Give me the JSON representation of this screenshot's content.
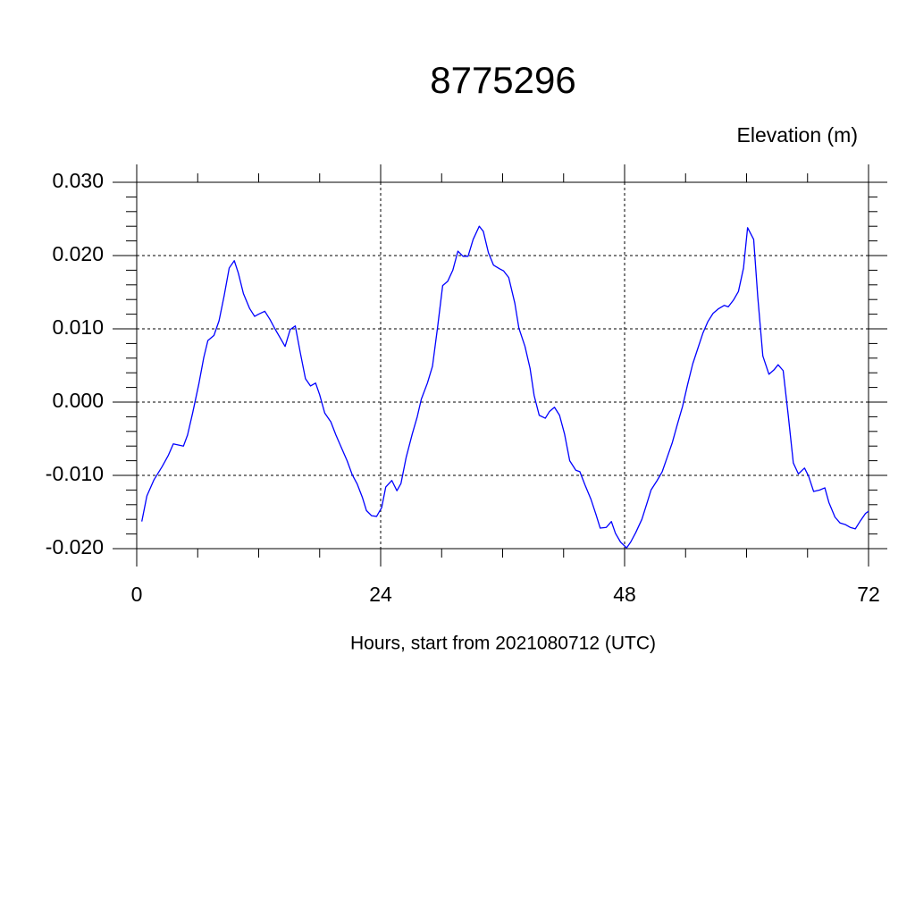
{
  "chart_data": {
    "type": "line",
    "title": "8775296",
    "subtitle": "Elevation (m)",
    "x_label": "Hours, start from 2021080712 (UTC)",
    "xlim": [
      0,
      72
    ],
    "xticks": [
      0,
      24,
      48,
      72
    ],
    "x_minor_ticks": [
      6,
      12,
      18,
      30,
      36,
      42,
      54,
      60,
      66
    ],
    "ylim": [
      -0.02,
      0.03
    ],
    "yticks": [
      {
        "value": 0.03,
        "label": "0.030"
      },
      {
        "value": 0.02,
        "label": "0.020"
      },
      {
        "value": 0.01,
        "label": "0.010"
      },
      {
        "value": 0,
        "label": "0.000"
      },
      {
        "value": -0.01,
        "label": "-0.010"
      },
      {
        "value": -0.02,
        "label": "-0.020"
      }
    ],
    "y_minor_ticks": [
      -0.018,
      -0.016,
      -0.014,
      -0.012,
      -0.008,
      -0.006,
      -0.004,
      -0.002,
      0.002,
      0.004,
      0.006,
      0.008,
      0.012,
      0.014,
      0.016,
      0.018,
      0.022,
      0.024,
      0.026,
      0.028
    ],
    "grid": true,
    "series": [
      {
        "color": "#0000ff",
        "x": [
          0.5,
          1.0,
          1.7,
          2.5,
          3.1,
          3.6,
          4.6,
          5.0,
          5.5,
          6.1,
          6.6,
          7.0,
          7.6,
          8.1,
          8.6,
          9.1,
          9.6,
          10.0,
          10.5,
          11.1,
          11.6,
          12.0,
          12.6,
          13.1,
          13.6,
          14.1,
          14.6,
          15.1,
          15.6,
          16.1,
          16.6,
          17.1,
          17.6,
          18.0,
          18.5,
          19.1,
          19.6,
          20.1,
          20.7,
          21.2,
          21.7,
          22.2,
          22.6,
          23.1,
          23.6,
          24.1,
          24.5,
          25.1,
          25.6,
          26.0,
          26.5,
          27.1,
          27.6,
          28.0,
          28.6,
          29.1,
          29.6,
          30.1,
          30.6,
          31.1,
          31.6,
          32.1,
          32.6,
          33.1,
          33.7,
          34.1,
          34.6,
          35.1,
          35.7,
          36.1,
          36.6,
          37.2,
          37.6,
          38.2,
          38.7,
          39.1,
          39.6,
          40.2,
          40.6,
          41.1,
          41.6,
          42.1,
          42.6,
          43.2,
          43.6,
          44.1,
          44.7,
          45.2,
          45.6,
          46.2,
          46.7,
          47.1,
          47.6,
          48.2,
          48.6,
          49.1,
          49.7,
          50.2,
          50.6,
          51.2,
          51.7,
          52.1,
          52.7,
          53.2,
          53.7,
          54.2,
          54.7,
          55.2,
          55.7,
          56.2,
          56.7,
          57.2,
          57.8,
          58.2,
          58.7,
          59.2,
          59.7,
          60.1,
          60.7,
          61.1,
          61.6,
          62.2,
          62.7,
          63.1,
          63.6,
          64.1,
          64.6,
          65.1,
          65.7,
          66.1,
          66.6,
          67.2,
          67.7,
          68.1,
          68.7,
          69.2,
          69.7,
          70.2,
          70.7,
          71.2,
          71.7,
          72
        ],
        "values": [
          -0.0163,
          -0.0128,
          -0.0106,
          -0.0088,
          -0.0073,
          -0.0057,
          -0.006,
          -0.0045,
          -0.0015,
          0.0024,
          0.0061,
          0.0084,
          0.0091,
          0.0111,
          0.0145,
          0.0183,
          0.0193,
          0.0176,
          0.0148,
          0.0128,
          0.0117,
          0.012,
          0.0124,
          0.0113,
          0.01,
          0.0088,
          0.0076,
          0.0099,
          0.0104,
          0.0067,
          0.0032,
          0.0022,
          0.0026,
          0.001,
          -0.0015,
          -0.0027,
          -0.0045,
          -0.0061,
          -0.008,
          -0.0099,
          -0.0112,
          -0.013,
          -0.0148,
          -0.0155,
          -0.0156,
          -0.0144,
          -0.0116,
          -0.0107,
          -0.0121,
          -0.0111,
          -0.0076,
          -0.0044,
          -0.002,
          0.0004,
          0.0026,
          0.0049,
          0.0102,
          0.0159,
          0.0165,
          0.018,
          0.0206,
          0.0199,
          0.0199,
          0.0222,
          0.024,
          0.0233,
          0.0204,
          0.0187,
          0.0182,
          0.0179,
          0.017,
          0.0135,
          0.0101,
          0.0076,
          0.0046,
          0.0009,
          -0.0018,
          -0.0022,
          -0.0013,
          -0.0007,
          -0.0018,
          -0.0044,
          -0.008,
          -0.0093,
          -0.0095,
          -0.0113,
          -0.0133,
          -0.0154,
          -0.0172,
          -0.0171,
          -0.0163,
          -0.0179,
          -0.0191,
          -0.0199,
          -0.0191,
          -0.0178,
          -0.016,
          -0.0138,
          -0.012,
          -0.0107,
          -0.0095,
          -0.0079,
          -0.0055,
          -0.003,
          -0.0006,
          0.0024,
          0.0052,
          0.0073,
          0.0094,
          0.011,
          0.0121,
          0.0127,
          0.0132,
          0.013,
          0.0139,
          0.0151,
          0.0183,
          0.0238,
          0.0222,
          0.0144,
          0.0063,
          0.0038,
          0.0044,
          0.0051,
          0.0043,
          -0.0018,
          -0.0083,
          -0.0098,
          -0.009,
          -0.0101,
          -0.0122,
          -0.012,
          -0.0117,
          -0.0137,
          -0.0157,
          -0.0165,
          -0.0167,
          -0.0171,
          -0.0173,
          -0.0162,
          -0.0152,
          -0.0149
        ]
      }
    ]
  }
}
